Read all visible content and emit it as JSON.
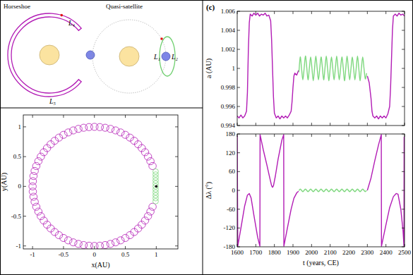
{
  "panel_label": "(c)",
  "diagrams": [
    {
      "title": "Horseshoe",
      "labels": [
        "L₄",
        "L₅"
      ]
    },
    {
      "title": "Quasi-satellite",
      "labels": [
        "L₁",
        "L₂"
      ]
    }
  ],
  "chart_data": [
    {
      "type": "scatter",
      "xlabel": "x(AU)",
      "ylabel": "y(AU)",
      "xlim": [
        -1.15,
        1.35
      ],
      "ylim": [
        -1.05,
        1.2
      ],
      "xticks": [
        -1,
        -0.5,
        0,
        0.5,
        1
      ],
      "yticks": [
        -1,
        -0.5,
        0,
        0.5,
        1
      ],
      "series": [
        {
          "color": "#b21cb5",
          "marker": "circle",
          "radius": 0.06,
          "x": [
            0.94,
            0.906,
            0.866,
            0.819,
            0.766,
            0.707,
            0.643,
            0.574,
            0.5,
            0.423,
            0.342,
            0.259,
            0.174,
            0.087,
            0,
            -0.087,
            -0.174,
            -0.259,
            -0.342,
            -0.423,
            -0.5,
            -0.574,
            -0.643,
            -0.707,
            -0.766,
            -0.819,
            -0.866,
            -0.906,
            -0.94,
            -0.966,
            -0.985,
            -0.996,
            -1,
            -0.996,
            -0.985,
            -0.966,
            -0.94,
            -0.906,
            -0.866,
            -0.819,
            -0.766,
            -0.707,
            -0.643,
            -0.574,
            -0.5,
            -0.423,
            -0.342,
            -0.259,
            -0.174,
            -0.087,
            0,
            0.087,
            0.174,
            0.259,
            0.342,
            0.423,
            0.5,
            0.574,
            0.643,
            0.707,
            0.766,
            0.819,
            0.866,
            0.906,
            0.94
          ],
          "values": [
            0.342,
            0.423,
            0.5,
            0.574,
            0.643,
            0.707,
            0.766,
            0.819,
            0.866,
            0.906,
            0.94,
            0.966,
            0.985,
            0.996,
            1,
            0.996,
            0.985,
            0.966,
            0.94,
            0.906,
            0.866,
            0.819,
            0.766,
            0.707,
            0.643,
            0.574,
            0.5,
            0.423,
            0.342,
            0.259,
            0.174,
            0.087,
            0,
            -0.087,
            -0.174,
            -0.259,
            -0.342,
            -0.423,
            -0.5,
            -0.574,
            -0.643,
            -0.707,
            -0.766,
            -0.819,
            -0.866,
            -0.906,
            -0.94,
            -0.966,
            -0.985,
            -0.996,
            -1,
            -0.996,
            -0.985,
            -0.966,
            -0.94,
            -0.906,
            -0.866,
            -0.819,
            -0.766,
            -0.707,
            -0.643,
            -0.574,
            -0.5,
            -0.423,
            -0.342
          ]
        },
        {
          "color": "#7fd87f",
          "marker": "circle",
          "radius": 0.045,
          "x": [
            0.99,
            0.99,
            0.99,
            0.99,
            0.99,
            0.99,
            0.99,
            0.99,
            0.99,
            0.99,
            0.99
          ],
          "values": [
            -0.25,
            -0.2,
            -0.15,
            -0.1,
            -0.05,
            0,
            0.05,
            0.1,
            0.15,
            0.2,
            0.25
          ]
        },
        {
          "color": "#000000",
          "marker": "dot",
          "x": [
            1
          ],
          "values": [
            0
          ]
        }
      ]
    },
    {
      "type": "line",
      "ylabel": "a (AU)",
      "tick_labels": "y",
      "xlim": [
        1600,
        2500
      ],
      "ylim": [
        0.994,
        1.006
      ],
      "xticks": [
        1600,
        1700,
        1800,
        1900,
        2000,
        2100,
        2200,
        2300,
        2400,
        2500
      ],
      "yticks": [
        0.994,
        0.996,
        0.998,
        1,
        1.002,
        1.004,
        1.006
      ],
      "series": [
        {
          "color": "#b21cb5",
          "line_style": "solid",
          "x": [
            1600,
            1610,
            1620,
            1630,
            1640,
            1650,
            1655,
            1660,
            1665,
            1670,
            1680,
            1690,
            1700,
            1710,
            1720,
            1730,
            1740,
            1750,
            1760,
            1770,
            1780,
            1785,
            1790,
            1795,
            1800,
            1810,
            1820,
            1830,
            1840,
            1850,
            1860,
            1870,
            1880,
            1890,
            1895,
            1900,
            1905,
            1910,
            1920,
            1930,
            2100,
            2300,
            2310,
            2320,
            2325,
            2330,
            2340,
            2350,
            2360,
            2370,
            2380,
            2390,
            2400,
            2410,
            2420,
            2425,
            2430,
            2435,
            2440,
            2450,
            2460,
            2470,
            2480,
            2490,
            2500
          ],
          "values": [
            0.995,
            0.9948,
            0.9951,
            0.9948,
            0.995,
            0.9955,
            0.9975,
            1.002,
            1.0048,
            1.0057,
            1.0055,
            1.0058,
            1.0056,
            1.0058,
            1.0055,
            1.0057,
            1.0056,
            1.0058,
            1.0055,
            1.0056,
            1.005,
            1.003,
            1.0,
            0.997,
            0.9953,
            0.9948,
            0.995,
            0.9947,
            0.995,
            0.9948,
            0.995,
            0.9948,
            0.9951,
            0.9955,
            0.9965,
            0.998,
            0.9992,
            0.9995,
            0.9993,
            0.9998,
            null,
            0.9992,
            0.9985,
            0.9968,
            0.9955,
            0.995,
            0.9948,
            0.995,
            0.9947,
            0.995,
            0.9948,
            0.995,
            0.9948,
            0.9952,
            0.996,
            0.998,
            1.001,
            1.004,
            1.0055,
            1.0057,
            1.0055,
            1.0058,
            1.0056,
            1.0057,
            1.0055
          ]
        },
        {
          "color": "#7fd87f",
          "line_style": "smooth",
          "x": [
            1932,
            1939,
            1946,
            1953,
            1960,
            1967,
            1974,
            1981,
            1988,
            1995,
            2002,
            2009,
            2016,
            2023,
            2030,
            2037,
            2044,
            2051,
            2058,
            2065,
            2072,
            2079,
            2086,
            2093,
            2100,
            2107,
            2114,
            2121,
            2128,
            2135,
            2142,
            2149,
            2156,
            2163,
            2170,
            2177,
            2184,
            2191,
            2198,
            2205,
            2212,
            2219,
            2226,
            2233,
            2240,
            2247,
            2254,
            2261,
            2268,
            2275,
            2282,
            2289,
            2296
          ],
          "values": [
            0.9996,
            1.0012,
            1.0,
            0.9988,
            1.0,
            1.0013,
            1.0001,
            0.9988,
            1.0,
            1.0012,
            1.0,
            0.9987,
            1.0,
            1.0013,
            1.0,
            0.9988,
            1.0,
            1.0012,
            1.0001,
            0.9988,
            1.0,
            1.0013,
            1.0,
            0.9987,
            1.0,
            1.0012,
            1.0,
            0.9988,
            1.0,
            1.0013,
            1.0,
            0.9988,
            1.0,
            1.0012,
            1.0001,
            0.9987,
            1.0,
            1.0013,
            1.0,
            0.9988,
            1.0,
            1.0012,
            1.0,
            0.9988,
            1.0,
            1.0013,
            1.0,
            0.9987,
            1.0,
            1.0012,
            1.0,
            0.9989,
            0.9995
          ]
        }
      ]
    },
    {
      "type": "line",
      "ylabel": "Δλ (°)",
      "xlabel": "t (years, CE)",
      "tick_labels": true,
      "xlim": [
        1600,
        2500
      ],
      "ylim": [
        -180,
        180
      ],
      "xticks": [
        1600,
        1700,
        1800,
        1900,
        2000,
        2100,
        2200,
        2300,
        2400,
        2500
      ],
      "yticks": [
        -180,
        -120,
        -60,
        0,
        60,
        120,
        180
      ],
      "series": [
        {
          "color": "#b21cb5",
          "line_style": "solid",
          "x": [
            1600,
            1603,
            1620,
            1640,
            1655,
            1665,
            1675,
            1690,
            1710,
            1722,
            1723,
            1740,
            1760,
            1775,
            1785,
            1790,
            1795,
            1805,
            1820,
            1840,
            1850,
            1851,
            1870,
            1890,
            1905,
            1920,
            1930,
            2100,
            2300,
            2320,
            2340,
            2360,
            2375,
            2376,
            2400,
            2420,
            2440,
            2455,
            2465,
            2480,
            2492,
            2497,
            2498,
            2500
          ],
          "values": [
            175,
            -178,
            -120,
            -50,
            -15,
            -10,
            -25,
            -80,
            -150,
            -178,
            178,
            130,
            80,
            40,
            15,
            10,
            15,
            45,
            100,
            160,
            178,
            -178,
            -120,
            -60,
            -25,
            -8,
            -3,
            null,
            0,
            40,
            95,
            145,
            178,
            -178,
            -110,
            -55,
            -20,
            -10,
            -12,
            -60,
            -130,
            -178,
            170,
            165
          ]
        },
        {
          "color": "#7fd87f",
          "line_style": "smooth",
          "x": [
            1932,
            1939,
            1946,
            1953,
            1960,
            1967,
            1974,
            1981,
            1988,
            1995,
            2002,
            2009,
            2016,
            2023,
            2030,
            2037,
            2044,
            2051,
            2058,
            2065,
            2072,
            2079,
            2086,
            2093,
            2100,
            2107,
            2114,
            2121,
            2128,
            2135,
            2142,
            2149,
            2156,
            2163,
            2170,
            2177,
            2184,
            2191,
            2198,
            2205,
            2212,
            2219,
            2226,
            2233,
            2240,
            2247,
            2254,
            2261,
            2268,
            2275,
            2282,
            2289,
            2296
          ],
          "values": [
            -1,
            4,
            0,
            -4,
            0,
            4,
            0,
            -4,
            0,
            4,
            0,
            -4,
            0,
            4,
            0,
            -4,
            0,
            4,
            0,
            -4,
            0,
            4,
            0,
            -4,
            0,
            4,
            0,
            -4,
            0,
            4,
            0,
            -4,
            0,
            4,
            0,
            -4,
            0,
            4,
            0,
            -4,
            0,
            4,
            0,
            -4,
            0,
            4,
            0,
            -4,
            0,
            4,
            0,
            -4,
            0
          ]
        }
      ]
    }
  ]
}
